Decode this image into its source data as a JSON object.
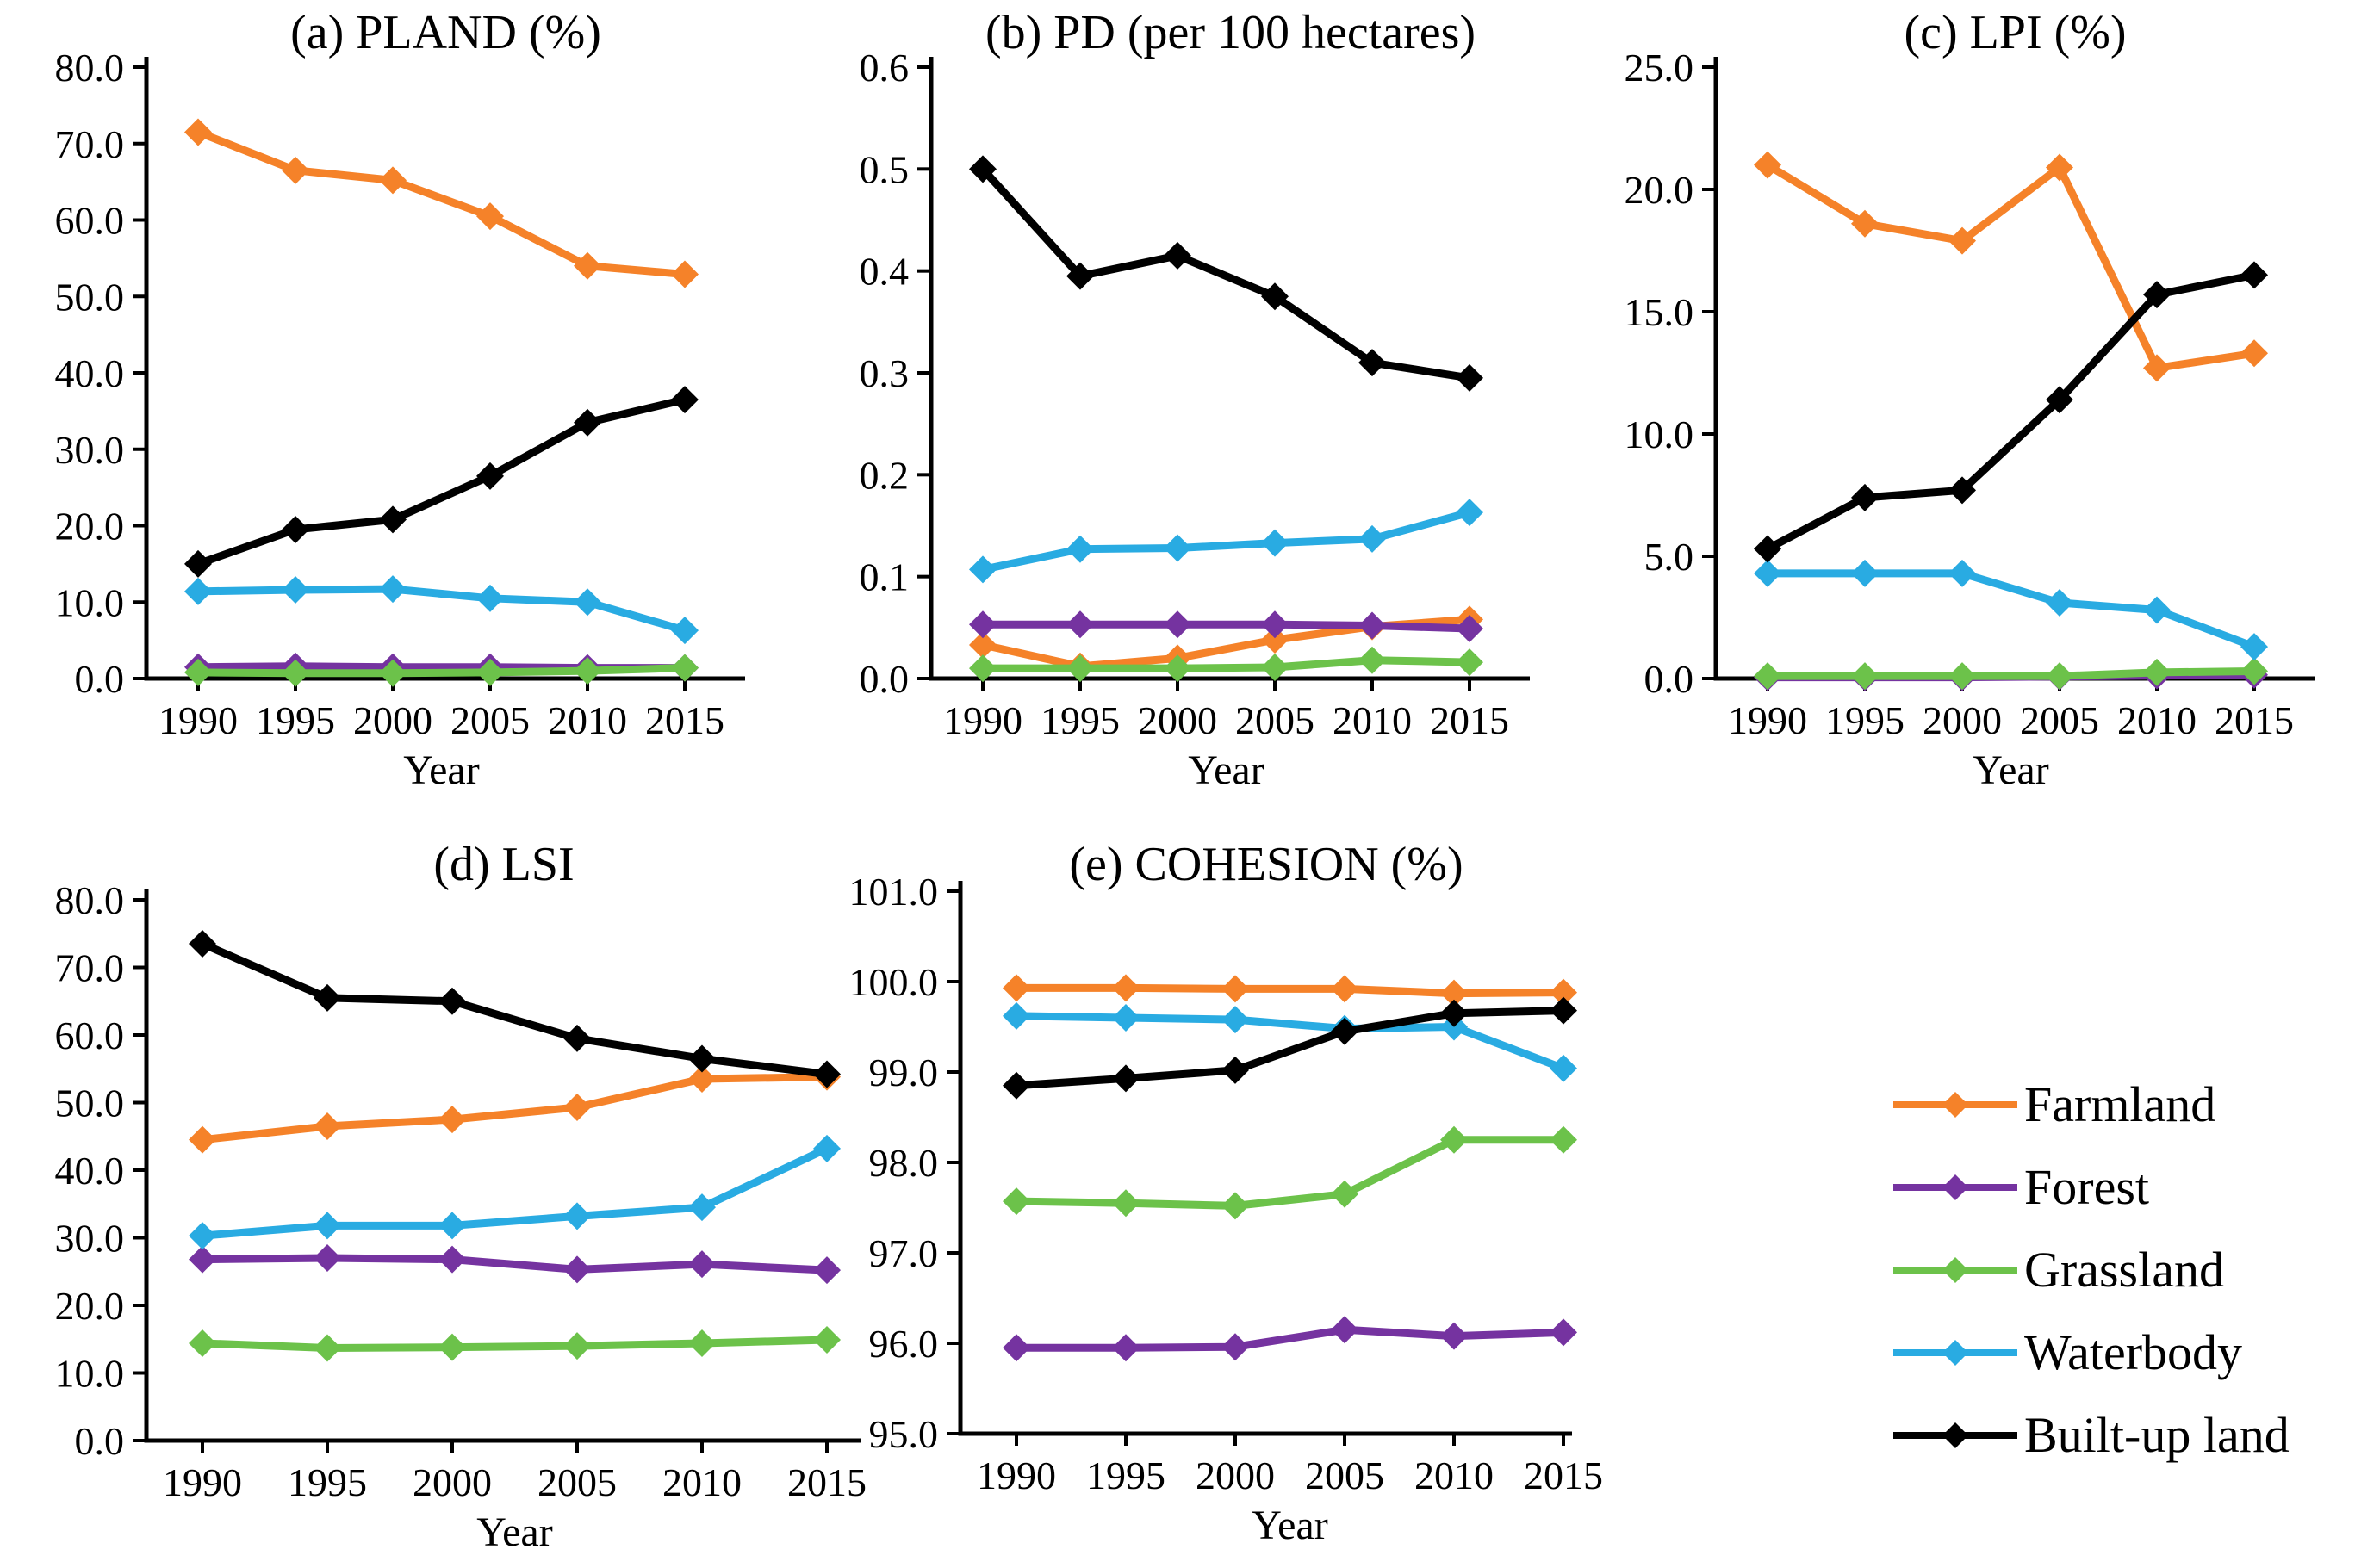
{
  "figure": {
    "x_axis_title": "Year"
  },
  "legend": {
    "items": [
      {
        "label": "Farmland",
        "color": "#F58229"
      },
      {
        "label": "Forest",
        "color": "#7533A0"
      },
      {
        "label": "Grassland",
        "color": "#6CC24A"
      },
      {
        "label": "Waterbody",
        "color": "#29ABE2"
      },
      {
        "label": "Built-up land",
        "color": "#000000"
      }
    ]
  },
  "chart_data": [
    {
      "id": "a",
      "type": "line",
      "title": "(a) PLAND (%)",
      "xlabel": "Year",
      "categories": [
        "1990",
        "1995",
        "2000",
        "2005",
        "2010",
        "2015"
      ],
      "ylim": [
        0,
        80
      ],
      "yticks": [
        "0.0",
        "10.0",
        "20.0",
        "30.0",
        "40.0",
        "50.0",
        "60.0",
        "70.0",
        "80.0"
      ],
      "grid": false,
      "legend_position": "figure-right",
      "series": [
        {
          "name": "Farmland",
          "color": "#F58229",
          "values": [
            71.5,
            66.5,
            65.2,
            60.5,
            54.0,
            52.9
          ]
        },
        {
          "name": "Forest",
          "color": "#7533A0",
          "values": [
            1.5,
            1.6,
            1.5,
            1.5,
            1.4,
            1.4
          ]
        },
        {
          "name": "Grassland",
          "color": "#6CC24A",
          "values": [
            0.8,
            0.7,
            0.7,
            0.8,
            1.0,
            1.4
          ]
        },
        {
          "name": "Waterbody",
          "color": "#29ABE2",
          "values": [
            11.4,
            11.6,
            11.7,
            10.5,
            10.0,
            6.3
          ]
        },
        {
          "name": "Built-up land",
          "color": "#000000",
          "values": [
            15.0,
            19.5,
            20.8,
            26.5,
            33.5,
            36.5
          ]
        }
      ]
    },
    {
      "id": "b",
      "type": "line",
      "title": "(b) PD (per 100 hectares)",
      "xlabel": "Year",
      "categories": [
        "1990",
        "1995",
        "2000",
        "2005",
        "2010",
        "2015"
      ],
      "ylim": [
        0,
        0.6
      ],
      "yticks": [
        "0.0",
        "0.1",
        "0.2",
        "0.3",
        "0.4",
        "0.5",
        "0.6"
      ],
      "grid": false,
      "legend_position": "figure-right",
      "series": [
        {
          "name": "Farmland",
          "color": "#F58229",
          "values": [
            0.033,
            0.012,
            0.02,
            0.038,
            0.051,
            0.058
          ]
        },
        {
          "name": "Forest",
          "color": "#7533A0",
          "values": [
            0.053,
            0.053,
            0.053,
            0.053,
            0.052,
            0.049
          ]
        },
        {
          "name": "Grassland",
          "color": "#6CC24A",
          "values": [
            0.01,
            0.01,
            0.01,
            0.011,
            0.018,
            0.016
          ]
        },
        {
          "name": "Waterbody",
          "color": "#29ABE2",
          "values": [
            0.107,
            0.127,
            0.128,
            0.133,
            0.137,
            0.163
          ]
        },
        {
          "name": "Built-up land",
          "color": "#000000",
          "values": [
            0.5,
            0.395,
            0.415,
            0.375,
            0.31,
            0.295
          ]
        }
      ]
    },
    {
      "id": "c",
      "type": "line",
      "title": "(c) LPI (%)",
      "xlabel": "Year",
      "categories": [
        "1990",
        "1995",
        "2000",
        "2005",
        "2010",
        "2015"
      ],
      "ylim": [
        0,
        25
      ],
      "yticks": [
        "0.0",
        "5.0",
        "10.0",
        "15.0",
        "20.0",
        "25.0"
      ],
      "grid": false,
      "legend_position": "figure-right",
      "series": [
        {
          "name": "Farmland",
          "color": "#F58229",
          "values": [
            21.0,
            18.6,
            17.9,
            20.9,
            12.7,
            13.3
          ]
        },
        {
          "name": "Forest",
          "color": "#7533A0",
          "values": [
            0.05,
            0.05,
            0.05,
            0.08,
            0.12,
            0.15
          ]
        },
        {
          "name": "Grassland",
          "color": "#6CC24A",
          "values": [
            0.1,
            0.1,
            0.1,
            0.1,
            0.25,
            0.3
          ]
        },
        {
          "name": "Waterbody",
          "color": "#29ABE2",
          "values": [
            4.3,
            4.3,
            4.3,
            3.1,
            2.8,
            1.3
          ]
        },
        {
          "name": "Built-up land",
          "color": "#000000",
          "values": [
            5.3,
            7.4,
            7.7,
            11.4,
            15.7,
            16.5
          ]
        }
      ]
    },
    {
      "id": "d",
      "type": "line",
      "title": "(d) LSI",
      "xlabel": "Year",
      "categories": [
        "1990",
        "1995",
        "2000",
        "2005",
        "2010",
        "2015"
      ],
      "ylim": [
        0,
        80
      ],
      "yticks": [
        "0.0",
        "10.0",
        "20.0",
        "30.0",
        "40.0",
        "50.0",
        "60.0",
        "70.0",
        "80.0"
      ],
      "grid": false,
      "legend_position": "figure-right",
      "series": [
        {
          "name": "Farmland",
          "color": "#F58229",
          "values": [
            44.5,
            46.5,
            47.5,
            49.3,
            53.5,
            53.8
          ]
        },
        {
          "name": "Forest",
          "color": "#7533A0",
          "values": [
            26.8,
            27.0,
            26.8,
            25.3,
            26.1,
            25.2
          ]
        },
        {
          "name": "Grassland",
          "color": "#6CC24A",
          "values": [
            14.4,
            13.7,
            13.8,
            14.0,
            14.4,
            14.9
          ]
        },
        {
          "name": "Waterbody",
          "color": "#29ABE2",
          "values": [
            30.3,
            31.8,
            31.8,
            33.2,
            34.5,
            43.2
          ]
        },
        {
          "name": "Built-up land",
          "color": "#000000",
          "values": [
            73.5,
            65.5,
            65.0,
            59.5,
            56.5,
            54.2
          ]
        }
      ]
    },
    {
      "id": "e",
      "type": "line",
      "title": "(e) COHESION (%)",
      "xlabel": "Year",
      "categories": [
        "1990",
        "1995",
        "2000",
        "2005",
        "2010",
        "2015"
      ],
      "ylim": [
        95,
        101
      ],
      "yticks": [
        "95.0",
        "96.0",
        "97.0",
        "98.0",
        "99.0",
        "100.0",
        "101.0"
      ],
      "grid": false,
      "legend_position": "figure-right",
      "series": [
        {
          "name": "Farmland",
          "color": "#F58229",
          "values": [
            99.93,
            99.93,
            99.92,
            99.92,
            99.87,
            99.88
          ]
        },
        {
          "name": "Forest",
          "color": "#7533A0",
          "values": [
            95.95,
            95.95,
            95.96,
            96.15,
            96.08,
            96.12
          ]
        },
        {
          "name": "Grassland",
          "color": "#6CC24A",
          "values": [
            97.57,
            97.55,
            97.52,
            97.65,
            98.25,
            98.25
          ]
        },
        {
          "name": "Waterbody",
          "color": "#29ABE2",
          "values": [
            99.62,
            99.6,
            99.58,
            99.48,
            99.5,
            99.04
          ]
        },
        {
          "name": "Built-up land",
          "color": "#000000",
          "values": [
            98.85,
            98.93,
            99.02,
            99.45,
            99.65,
            99.68
          ]
        }
      ]
    }
  ]
}
